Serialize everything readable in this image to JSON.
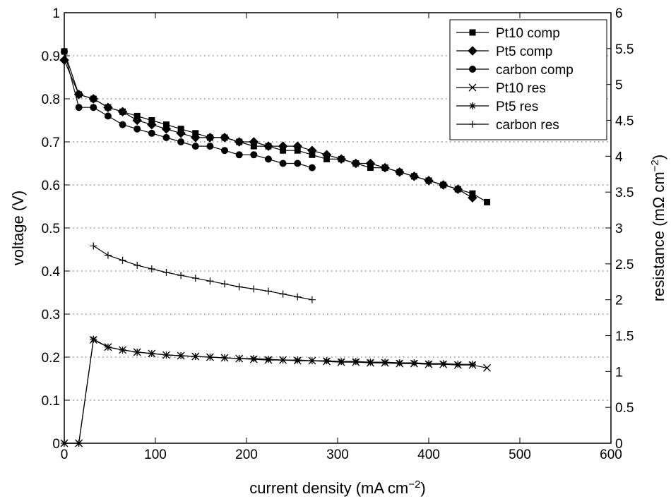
{
  "chart_data": {
    "type": "line",
    "title": "",
    "xlabel": "current density (mA cm",
    "xlabel_sup": "−2",
    "xlabel_close": ")",
    "ylabel_left": "voltage (V)",
    "ylabel_right": "resistance (mΩ cm",
    "ylabel_right_sup": "−2",
    "ylabel_right_close": ")",
    "xlim": [
      0,
      600
    ],
    "ylim_left": [
      0,
      1
    ],
    "ylim_right": [
      0,
      6
    ],
    "xticks": [
      "0",
      "100",
      "200",
      "300",
      "400",
      "500",
      "600"
    ],
    "yticks_left": [
      "0",
      "0.1",
      "0.2",
      "0.3",
      "0.4",
      "0.5",
      "0.6",
      "0.7",
      "0.8",
      "0.9",
      "1"
    ],
    "yticks_right": [
      "0",
      "0.5",
      "1",
      "1.5",
      "2",
      "2.5",
      "3",
      "3.5",
      "4",
      "4.5",
      "5",
      "5.5",
      "6"
    ],
    "grid": "horizontal dotted",
    "legend_position": "top-right",
    "series": [
      {
        "name": "Pt10 comp",
        "axis": "left",
        "marker": "square",
        "x": [
          0,
          16,
          32,
          48,
          64,
          80,
          96,
          112,
          128,
          144,
          160,
          176,
          192,
          208,
          224,
          240,
          256,
          272,
          288,
          304,
          320,
          336,
          352,
          368,
          384,
          400,
          416,
          432,
          448,
          464
        ],
        "y": [
          0.91,
          0.81,
          0.8,
          0.78,
          0.77,
          0.76,
          0.75,
          0.74,
          0.73,
          0.72,
          0.71,
          0.71,
          0.7,
          0.69,
          0.69,
          0.68,
          0.68,
          0.67,
          0.66,
          0.66,
          0.65,
          0.64,
          0.64,
          0.63,
          0.62,
          0.61,
          0.6,
          0.59,
          0.58,
          0.56
        ]
      },
      {
        "name": "Pt5 comp",
        "axis": "left",
        "marker": "diamond",
        "x": [
          0,
          16,
          32,
          48,
          64,
          80,
          96,
          112,
          128,
          144,
          160,
          176,
          192,
          208,
          224,
          240,
          256,
          272,
          288,
          304,
          320,
          336,
          352,
          368,
          384,
          400,
          416,
          432,
          448
        ],
        "y": [
          0.89,
          0.81,
          0.8,
          0.78,
          0.77,
          0.75,
          0.74,
          0.73,
          0.72,
          0.71,
          0.71,
          0.71,
          0.7,
          0.7,
          0.69,
          0.69,
          0.69,
          0.68,
          0.67,
          0.66,
          0.65,
          0.65,
          0.64,
          0.63,
          0.62,
          0.61,
          0.6,
          0.59,
          0.57
        ]
      },
      {
        "name": "carbon comp",
        "axis": "left",
        "marker": "circle",
        "x": [
          0,
          16,
          32,
          48,
          64,
          80,
          96,
          112,
          128,
          144,
          160,
          176,
          192,
          208,
          224,
          240,
          256,
          272
        ],
        "y": [
          0.91,
          0.78,
          0.78,
          0.76,
          0.74,
          0.73,
          0.72,
          0.71,
          0.7,
          0.69,
          0.69,
          0.68,
          0.67,
          0.67,
          0.66,
          0.65,
          0.65,
          0.64
        ]
      },
      {
        "name": "Pt10 res",
        "axis": "right",
        "marker": "x",
        "x": [
          0,
          16,
          32,
          48,
          64,
          80,
          96,
          112,
          128,
          144,
          160,
          176,
          192,
          208,
          224,
          240,
          256,
          272,
          288,
          304,
          320,
          336,
          352,
          368,
          384,
          400,
          416,
          432,
          448,
          464
        ],
        "y": [
          0,
          0,
          1.44,
          1.34,
          1.3,
          1.27,
          1.25,
          1.23,
          1.22,
          1.21,
          1.2,
          1.19,
          1.18,
          1.17,
          1.16,
          1.16,
          1.15,
          1.15,
          1.14,
          1.13,
          1.13,
          1.12,
          1.12,
          1.11,
          1.11,
          1.1,
          1.1,
          1.09,
          1.09,
          1.05
        ]
      },
      {
        "name": "Pt5 res",
        "axis": "right",
        "marker": "asterisk",
        "x": [
          0,
          16,
          32,
          48,
          64,
          80,
          96,
          112,
          128,
          144,
          160,
          176,
          192,
          208,
          224,
          240,
          256,
          272,
          288,
          304,
          320,
          336,
          352,
          368,
          384,
          400,
          416,
          432,
          448
        ],
        "y": [
          0,
          0,
          1.45,
          1.34,
          1.3,
          1.27,
          1.25,
          1.23,
          1.22,
          1.21,
          1.2,
          1.19,
          1.18,
          1.18,
          1.17,
          1.16,
          1.16,
          1.15,
          1.15,
          1.14,
          1.14,
          1.13,
          1.13,
          1.12,
          1.12,
          1.11,
          1.11,
          1.1,
          1.1
        ]
      },
      {
        "name": "carbon res",
        "axis": "right",
        "marker": "plus",
        "x": [
          32,
          48,
          64,
          80,
          96,
          112,
          128,
          144,
          160,
          176,
          192,
          208,
          224,
          240,
          256,
          272
        ],
        "y": [
          2.75,
          2.62,
          2.55,
          2.48,
          2.43,
          2.38,
          2.34,
          2.3,
          2.26,
          2.22,
          2.18,
          2.15,
          2.12,
          2.08,
          2.04,
          2.0
        ]
      }
    ]
  }
}
